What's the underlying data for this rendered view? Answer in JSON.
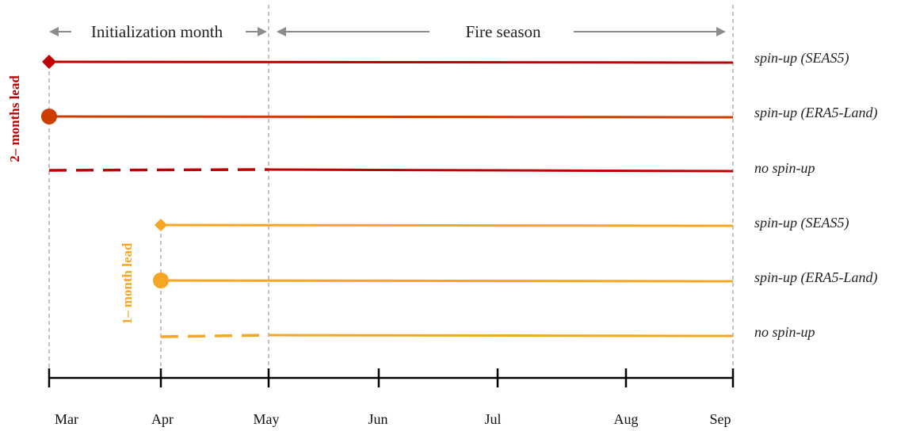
{
  "header": {
    "init_label": "Initialization month",
    "season_label": "Fire season"
  },
  "leads": [
    {
      "label": "2– months lead",
      "color": "#c00000"
    },
    {
      "label": "1– month lead",
      "color": "#f5a623"
    }
  ],
  "rows": [
    {
      "label": "spin-up (SEAS5)",
      "color": "#c00000",
      "marker": "diamond",
      "style": "solid"
    },
    {
      "label": "spin-up (ERA5-Land)",
      "color": "#cc3d00",
      "marker": "circle",
      "style": "solid"
    },
    {
      "label": "no spin-up",
      "color": "#c00000",
      "marker": "none",
      "style": "dashed-to-May"
    },
    {
      "label": "spin-up (SEAS5)",
      "color": "#f5a623",
      "marker": "diamond",
      "style": "solid"
    },
    {
      "label": "spin-up (ERA5-Land)",
      "color": "#f5a623",
      "marker": "circle",
      "style": "solid"
    },
    {
      "label": "no spin-up",
      "color": "#f5a623",
      "marker": "none",
      "style": "dashed-to-May"
    }
  ],
  "axis": {
    "months": [
      "Mar",
      "Apr",
      "May",
      "Jun",
      "Jul",
      "Aug",
      "Sep"
    ]
  }
}
